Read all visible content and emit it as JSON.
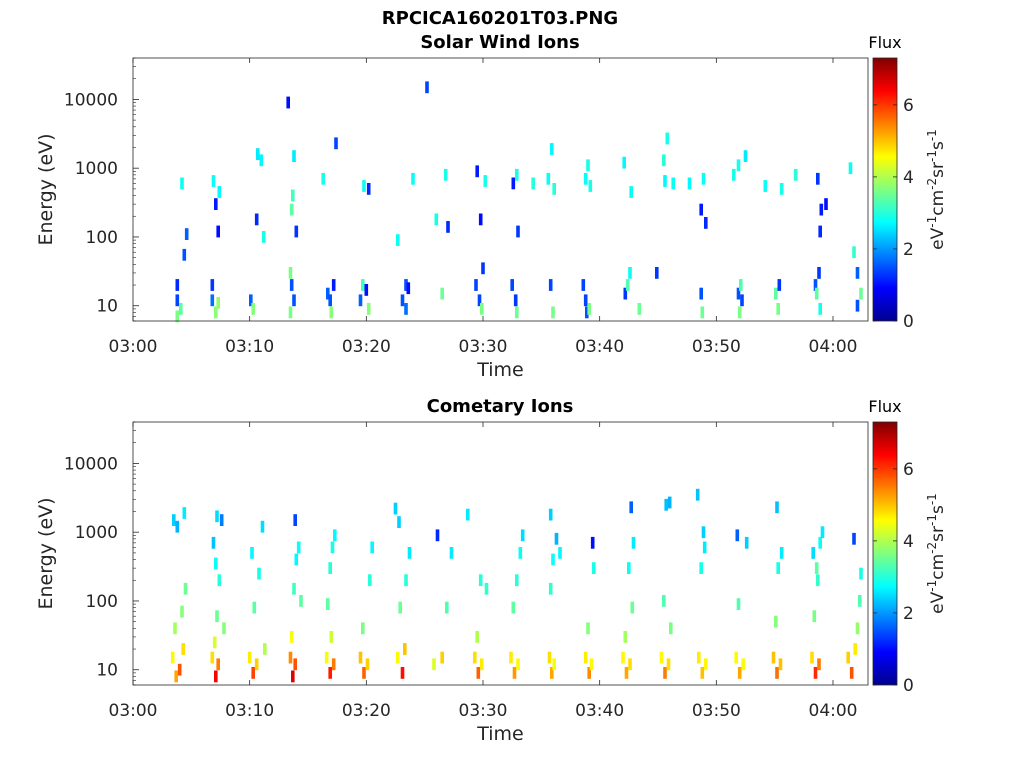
{
  "figure": {
    "title": "RPCICA160201T03.PNG"
  },
  "chart_data": [
    {
      "type": "heatmap",
      "title": "Solar Wind Ions",
      "xlabel": "Time",
      "ylabel": "Energy (eV)",
      "xlim": [
        "03:00",
        "04:03"
      ],
      "ylim": [
        6,
        40000
      ],
      "yscale": "log",
      "x_ticks": [
        "03:00",
        "03:10",
        "03:20",
        "03:30",
        "03:40",
        "03:50",
        "04:00"
      ],
      "y_ticks": [
        "10",
        "100",
        "1000",
        "10000"
      ],
      "grid": false,
      "colorbar": {
        "label": "Flux",
        "unit": "eV-1cm-2sr-1s-1",
        "range": [
          0,
          7.3
        ],
        "ticks": [
          "0",
          "2",
          "4",
          "6"
        ],
        "colormap": "jet"
      },
      "pixels": [
        [
          3.8,
          20,
          1.2
        ],
        [
          3.8,
          12,
          1.4
        ],
        [
          3.8,
          7,
          3.6
        ],
        [
          4.1,
          9,
          3.4
        ],
        [
          4.4,
          55,
          1.5
        ],
        [
          4.6,
          110,
          1.6
        ],
        [
          4.2,
          600,
          2.8
        ],
        [
          6.8,
          20,
          1.3
        ],
        [
          6.8,
          12,
          1.7
        ],
        [
          7.1,
          8,
          3.7
        ],
        [
          7.3,
          11,
          3.8
        ],
        [
          7.1,
          300,
          1.1
        ],
        [
          7.3,
          120,
          1.0
        ],
        [
          6.9,
          650,
          2.8
        ],
        [
          7.4,
          450,
          2.7
        ],
        [
          10.1,
          12,
          1.6
        ],
        [
          10.3,
          9,
          3.7
        ],
        [
          10.7,
          1600,
          2.6
        ],
        [
          11.0,
          1300,
          2.7
        ],
        [
          10.6,
          180,
          1.2
        ],
        [
          11.2,
          100,
          2.9
        ],
        [
          13.5,
          30,
          3.6
        ],
        [
          13.6,
          20,
          1.5
        ],
        [
          13.8,
          12,
          1.5
        ],
        [
          13.5,
          8,
          3.6
        ],
        [
          13.7,
          400,
          3.2
        ],
        [
          13.6,
          250,
          3.4
        ],
        [
          13.8,
          1500,
          2.6
        ],
        [
          13.3,
          9000,
          1.0
        ],
        [
          14.0,
          120,
          1.3
        ],
        [
          16.7,
          15,
          1.6
        ],
        [
          16.9,
          12,
          1.5
        ],
        [
          17.0,
          8,
          3.7
        ],
        [
          17.2,
          20,
          1.1
        ],
        [
          17.4,
          2300,
          1.4
        ],
        [
          16.3,
          700,
          2.9
        ],
        [
          19.5,
          12,
          1.6
        ],
        [
          19.7,
          20,
          3.2
        ],
        [
          20.0,
          17,
          1.0
        ],
        [
          20.2,
          9,
          3.7
        ],
        [
          19.8,
          550,
          2.8
        ],
        [
          20.2,
          500,
          1.2
        ],
        [
          22.7,
          90,
          2.8
        ],
        [
          23.1,
          12,
          1.5
        ],
        [
          23.4,
          9,
          1.7
        ],
        [
          23.4,
          20,
          1.5
        ],
        [
          23.6,
          18,
          1.0
        ],
        [
          24.0,
          700,
          2.8
        ],
        [
          25.2,
          15000,
          1.4
        ],
        [
          26.0,
          180,
          2.9
        ],
        [
          26.5,
          15,
          3.5
        ],
        [
          26.8,
          800,
          2.9
        ],
        [
          27.0,
          140,
          1.2
        ],
        [
          29.4,
          20,
          1.4
        ],
        [
          29.7,
          12,
          1.4
        ],
        [
          29.9,
          9,
          3.6
        ],
        [
          30.0,
          35,
          1.3
        ],
        [
          29.8,
          180,
          1.0
        ],
        [
          30.2,
          650,
          2.9
        ],
        [
          29.5,
          900,
          1.1
        ],
        [
          32.5,
          20,
          1.4
        ],
        [
          32.8,
          12,
          1.3
        ],
        [
          32.9,
          8,
          3.5
        ],
        [
          32.6,
          600,
          1.1
        ],
        [
          33.0,
          120,
          1.3
        ],
        [
          32.9,
          800,
          2.9
        ],
        [
          34.3,
          600,
          3.0
        ],
        [
          35.8,
          20,
          1.4
        ],
        [
          36.0,
          8,
          3.6
        ],
        [
          35.9,
          1900,
          2.7
        ],
        [
          35.6,
          700,
          2.8
        ],
        [
          36.1,
          500,
          3.0
        ],
        [
          38.6,
          20,
          1.4
        ],
        [
          38.8,
          12,
          1.4
        ],
        [
          38.9,
          8,
          1.5
        ],
        [
          39.1,
          9,
          3.6
        ],
        [
          38.8,
          700,
          2.8
        ],
        [
          39.2,
          550,
          2.9
        ],
        [
          39.0,
          1100,
          2.9
        ],
        [
          42.2,
          15,
          1.3
        ],
        [
          42.4,
          20,
          3.3
        ],
        [
          42.6,
          30,
          2.8
        ],
        [
          42.1,
          1200,
          2.7
        ],
        [
          42.7,
          450,
          2.8
        ],
        [
          43.4,
          9,
          3.5
        ],
        [
          44.9,
          30,
          1.3
        ],
        [
          45.8,
          2700,
          2.9
        ],
        [
          45.5,
          1300,
          3.0
        ],
        [
          45.6,
          650,
          2.7
        ],
        [
          46.3,
          600,
          2.8
        ],
        [
          47.7,
          600,
          2.7
        ],
        [
          48.7,
          15,
          1.5
        ],
        [
          48.8,
          8,
          3.5
        ],
        [
          48.9,
          700,
          2.8
        ],
        [
          48.7,
          250,
          1.1
        ],
        [
          49.1,
          160,
          1.2
        ],
        [
          51.9,
          15,
          1.5
        ],
        [
          52.2,
          12,
          1.4
        ],
        [
          52.1,
          20,
          3.3
        ],
        [
          52.0,
          8,
          3.6
        ],
        [
          51.5,
          800,
          2.9
        ],
        [
          51.9,
          1100,
          2.9
        ],
        [
          52.5,
          1500,
          2.6
        ],
        [
          55.1,
          15,
          3.4
        ],
        [
          55.3,
          9,
          3.6
        ],
        [
          55.4,
          20,
          1.3
        ],
        [
          54.2,
          550,
          2.8
        ],
        [
          55.6,
          500,
          2.9
        ],
        [
          56.8,
          800,
          3.0
        ],
        [
          58.5,
          20,
          1.5
        ],
        [
          58.6,
          15,
          3.4
        ],
        [
          58.8,
          30,
          1.3
        ],
        [
          58.9,
          120,
          1.2
        ],
        [
          59.0,
          250,
          1.1
        ],
        [
          59.4,
          300,
          1.0
        ],
        [
          58.7,
          700,
          1.3
        ],
        [
          58.9,
          9,
          2.9
        ],
        [
          61.5,
          1000,
          2.8
        ],
        [
          61.8,
          60,
          3.1
        ],
        [
          62.1,
          30,
          1.6
        ],
        [
          62.4,
          15,
          3.5
        ],
        [
          62.1,
          10,
          1.5
        ]
      ]
    },
    {
      "type": "heatmap",
      "title": "Cometary Ions",
      "xlabel": "Time",
      "ylabel": "Energy (eV)",
      "xlim": [
        "03:00",
        "04:03"
      ],
      "ylim": [
        6,
        40000
      ],
      "yscale": "log",
      "x_ticks": [
        "03:00",
        "03:10",
        "03:20",
        "03:30",
        "03:40",
        "03:50",
        "04:00"
      ],
      "y_ticks": [
        "10",
        "100",
        "1000",
        "10000"
      ],
      "grid": false,
      "colorbar": {
        "label": "Flux",
        "unit": "eV-1cm-2sr-1s-1",
        "range": [
          0,
          7.3
        ],
        "ticks": [
          "0",
          "2",
          "4",
          "6"
        ],
        "colormap": "jet"
      },
      "pixels": [
        [
          3.4,
          15,
          4.6
        ],
        [
          3.7,
          8,
          5.2
        ],
        [
          4.0,
          10,
          5.8
        ],
        [
          4.3,
          20,
          4.8
        ],
        [
          3.6,
          40,
          3.9
        ],
        [
          4.2,
          70,
          3.7
        ],
        [
          4.5,
          150,
          3.5
        ],
        [
          3.5,
          1500,
          2.4
        ],
        [
          4.4,
          1900,
          2.6
        ],
        [
          3.8,
          1200,
          2.2
        ],
        [
          6.8,
          15,
          4.8
        ],
        [
          7.1,
          8,
          6.4
        ],
        [
          7.3,
          12,
          5.5
        ],
        [
          7.0,
          25,
          4.3
        ],
        [
          7.2,
          60,
          3.5
        ],
        [
          7.4,
          200,
          3.0
        ],
        [
          7.1,
          350,
          2.8
        ],
        [
          6.9,
          700,
          2.3
        ],
        [
          7.2,
          1700,
          2.5
        ],
        [
          7.6,
          1500,
          1.8
        ],
        [
          7.8,
          40,
          3.7
        ],
        [
          10.0,
          15,
          4.7
        ],
        [
          10.3,
          9,
          5.9
        ],
        [
          10.6,
          12,
          4.9
        ],
        [
          10.4,
          80,
          3.4
        ],
        [
          10.8,
          250,
          2.9
        ],
        [
          10.2,
          500,
          2.7
        ],
        [
          11.1,
          1200,
          2.5
        ],
        [
          11.3,
          20,
          4.0
        ],
        [
          13.5,
          15,
          5.4
        ],
        [
          13.7,
          8,
          6.6
        ],
        [
          13.9,
          12,
          5.8
        ],
        [
          13.6,
          30,
          4.5
        ],
        [
          13.8,
          150,
          3.2
        ],
        [
          14.0,
          400,
          2.7
        ],
        [
          13.9,
          1500,
          1.4
        ],
        [
          14.2,
          600,
          2.8
        ],
        [
          14.4,
          100,
          3.4
        ],
        [
          16.6,
          15,
          4.5
        ],
        [
          16.9,
          9,
          6.2
        ],
        [
          17.2,
          12,
          5.5
        ],
        [
          17.0,
          30,
          4.2
        ],
        [
          16.7,
          90,
          3.4
        ],
        [
          16.9,
          300,
          3.0
        ],
        [
          17.1,
          600,
          2.9
        ],
        [
          17.3,
          900,
          2.7
        ],
        [
          19.5,
          15,
          5.0
        ],
        [
          19.8,
          9,
          5.7
        ],
        [
          20.1,
          12,
          4.9
        ],
        [
          19.7,
          40,
          3.6
        ],
        [
          20.3,
          200,
          3.0
        ],
        [
          20.5,
          600,
          2.7
        ],
        [
          22.7,
          15,
          4.6
        ],
        [
          23.1,
          9,
          6.3
        ],
        [
          23.3,
          20,
          5.0
        ],
        [
          22.9,
          80,
          3.5
        ],
        [
          23.4,
          200,
          3.0
        ],
        [
          23.7,
          500,
          2.6
        ],
        [
          22.5,
          2200,
          2.4
        ],
        [
          22.8,
          1400,
          2.4
        ],
        [
          25.8,
          12,
          4.3
        ],
        [
          26.5,
          15,
          4.9
        ],
        [
          26.1,
          900,
          1.2
        ],
        [
          27.3,
          500,
          2.6
        ],
        [
          26.9,
          80,
          3.3
        ],
        [
          29.3,
          15,
          4.8
        ],
        [
          29.6,
          9,
          5.7
        ],
        [
          29.9,
          12,
          4.7
        ],
        [
          29.5,
          30,
          4.0
        ],
        [
          29.8,
          200,
          3.0
        ],
        [
          30.3,
          150,
          3.1
        ],
        [
          28.7,
          1800,
          2.6
        ],
        [
          32.4,
          15,
          4.7
        ],
        [
          32.7,
          9,
          5.3
        ],
        [
          33.0,
          12,
          4.6
        ],
        [
          32.6,
          80,
          3.4
        ],
        [
          32.9,
          200,
          3.0
        ],
        [
          33.2,
          500,
          2.8
        ],
        [
          33.4,
          900,
          2.5
        ],
        [
          35.7,
          15,
          4.8
        ],
        [
          35.9,
          9,
          5.2
        ],
        [
          36.1,
          12,
          4.5
        ],
        [
          35.8,
          150,
          3.1
        ],
        [
          36.0,
          400,
          2.8
        ],
        [
          35.8,
          1800,
          2.4
        ],
        [
          36.3,
          800,
          2.2
        ],
        [
          36.6,
          500,
          2.7
        ],
        [
          38.8,
          15,
          4.7
        ],
        [
          39.1,
          9,
          5.4
        ],
        [
          39.3,
          12,
          4.6
        ],
        [
          39.0,
          40,
          3.7
        ],
        [
          39.5,
          300,
          2.9
        ],
        [
          39.4,
          700,
          1.0
        ],
        [
          42.0,
          15,
          4.6
        ],
        [
          42.3,
          9,
          5.2
        ],
        [
          42.6,
          12,
          4.8
        ],
        [
          42.2,
          30,
          3.9
        ],
        [
          42.8,
          80,
          3.5
        ],
        [
          42.5,
          300,
          2.8
        ],
        [
          42.9,
          700,
          2.6
        ],
        [
          42.7,
          2300,
          1.6
        ],
        [
          45.3,
          15,
          4.6
        ],
        [
          45.6,
          9,
          5.5
        ],
        [
          45.9,
          12,
          4.8
        ],
        [
          45.5,
          100,
          3.3
        ],
        [
          46.1,
          40,
          3.6
        ],
        [
          45.7,
          2500,
          2.3
        ],
        [
          46.0,
          2700,
          2.2
        ],
        [
          48.5,
          15,
          4.7
        ],
        [
          48.8,
          9,
          5.0
        ],
        [
          49.1,
          12,
          4.6
        ],
        [
          48.7,
          300,
          2.9
        ],
        [
          49.0,
          600,
          2.6
        ],
        [
          48.9,
          1000,
          2.4
        ],
        [
          48.4,
          3500,
          2.3
        ],
        [
          51.7,
          15,
          4.6
        ],
        [
          52.0,
          9,
          5.2
        ],
        [
          52.3,
          12,
          4.5
        ],
        [
          51.9,
          90,
          3.3
        ],
        [
          51.8,
          900,
          1.6
        ],
        [
          52.6,
          700,
          2.4
        ],
        [
          54.9,
          15,
          5.0
        ],
        [
          55.2,
          9,
          5.6
        ],
        [
          55.5,
          12,
          5.0
        ],
        [
          55.1,
          50,
          3.7
        ],
        [
          55.3,
          300,
          2.9
        ],
        [
          55.2,
          2300,
          2.3
        ],
        [
          55.6,
          500,
          2.6
        ],
        [
          58.2,
          15,
          4.8
        ],
        [
          58.5,
          9,
          6.1
        ],
        [
          58.8,
          12,
          5.5
        ],
        [
          58.4,
          60,
          3.6
        ],
        [
          58.7,
          200,
          3.1
        ],
        [
          58.6,
          300,
          3.4
        ],
        [
          58.9,
          700,
          2.8
        ],
        [
          58.3,
          500,
          2.5
        ],
        [
          59.1,
          1000,
          2.6
        ],
        [
          61.3,
          15,
          4.9
        ],
        [
          61.6,
          9,
          5.8
        ],
        [
          61.9,
          20,
          4.7
        ],
        [
          62.1,
          40,
          3.8
        ],
        [
          62.3,
          100,
          3.3
        ],
        [
          61.8,
          800,
          1.4
        ],
        [
          62.4,
          250,
          2.9
        ]
      ]
    }
  ]
}
